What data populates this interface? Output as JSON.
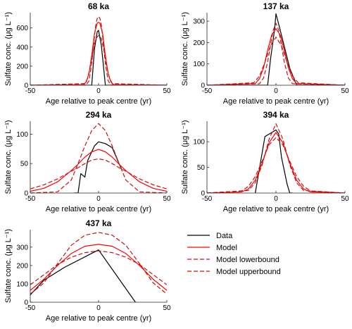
{
  "chart_data": [
    {
      "type": "line",
      "title": "68 ka",
      "xlabel": "Age relative to peak centre (yr)",
      "ylabel": "Sulfate conc. (μg L⁻¹)",
      "xlim": [
        -50,
        50
      ],
      "ylim": [
        0,
        760
      ],
      "xticks": [
        -50,
        0,
        50
      ],
      "yticks": [
        0,
        200,
        400,
        600
      ],
      "series": [
        {
          "name": "Data",
          "x": [
            -50,
            -5,
            -3,
            -1,
            0,
            2,
            5,
            50
          ],
          "y": [
            0,
            0,
            380,
            560,
            575,
            420,
            0,
            0
          ]
        },
        {
          "name": "Model",
          "x": [
            -50,
            -11,
            -9,
            -7,
            -5,
            -3,
            -1,
            0,
            1,
            3,
            5,
            7,
            9,
            11,
            50
          ],
          "y": [
            0,
            7,
            35,
            124,
            311,
            541,
            651,
            660,
            651,
            541,
            311,
            124,
            35,
            7,
            0
          ]
        },
        {
          "name": "Model lowerbound",
          "x": [
            -50,
            -10,
            -8,
            -6,
            -4,
            -2,
            0,
            2,
            4,
            6,
            8,
            10,
            50
          ],
          "y": [
            0,
            18,
            74,
            200,
            361,
            491,
            520,
            491,
            361,
            200,
            74,
            18,
            0
          ]
        },
        {
          "name": "Model upperbound",
          "x": [
            -50,
            -9,
            -7,
            -5,
            -3,
            -2,
            -1,
            0,
            1,
            2,
            3,
            5,
            7,
            9,
            50
          ],
          "y": [
            0,
            4,
            46,
            226,
            511,
            634,
            702,
            720,
            702,
            634,
            511,
            226,
            46,
            4,
            0
          ]
        }
      ]
    },
    {
      "type": "line",
      "title": "137 ka",
      "xlabel": "Age relative to peak centre (yr)",
      "ylabel": "Sulfate conc. (μg L⁻¹)",
      "xlim": [
        -50,
        50
      ],
      "ylim": [
        0,
        340
      ],
      "xticks": [
        -50,
        0,
        50
      ],
      "yticks": [
        0,
        100,
        200,
        300
      ],
      "series": [
        {
          "name": "Data",
          "x": [
            -50,
            -6,
            -4,
            -1,
            0,
            3,
            10,
            15,
            50
          ],
          "y": [
            0,
            0,
            120,
            260,
            335,
            260,
            80,
            0,
            0
          ]
        },
        {
          "name": "Model",
          "x": [
            -50,
            -15,
            -12,
            -9,
            -6,
            -3,
            0,
            3,
            6,
            9,
            12,
            15,
            50
          ],
          "y": [
            0,
            8,
            30,
            82,
            164,
            237,
            265,
            237,
            164,
            82,
            30,
            8,
            0
          ]
        },
        {
          "name": "Model lowerbound",
          "x": [
            -50,
            -16,
            -12,
            -8,
            -4,
            0,
            4,
            8,
            12,
            16,
            50
          ],
          "y": [
            0,
            12,
            43,
            107,
            186,
            225,
            186,
            107,
            43,
            12,
            0
          ]
        },
        {
          "name": "Model upperbound",
          "x": [
            -50,
            -12,
            -9,
            -6,
            -4,
            -2,
            0,
            2,
            4,
            6,
            9,
            12,
            50
          ],
          "y": [
            0,
            7,
            34,
            109,
            186,
            258,
            290,
            258,
            186,
            109,
            34,
            7,
            0
          ]
        }
      ]
    },
    {
      "type": "line",
      "title": "294 ka",
      "xlabel": "Age relative to peak centre (yr)",
      "ylabel": "Sulfate conc. (μg L⁻¹)",
      "xlim": [
        -50,
        50
      ],
      "ylim": [
        0,
        122
      ],
      "xticks": [
        -50,
        0,
        50
      ],
      "yticks": [
        0,
        50,
        100
      ],
      "series": [
        {
          "name": "Data",
          "x": [
            -18,
            -15,
            -13,
            -10,
            -8,
            -3,
            0,
            5,
            10,
            15,
            17
          ],
          "y": [
            0,
            0,
            33,
            27,
            55,
            80,
            87,
            84,
            77,
            50,
            40
          ]
        },
        {
          "name": "Model",
          "x": [
            -50,
            -40,
            -30,
            -20,
            -15,
            -10,
            -5,
            0,
            5,
            10,
            15,
            20,
            30,
            40,
            50
          ],
          "y": [
            3,
            8,
            19,
            38,
            49,
            61,
            70,
            74,
            70,
            61,
            49,
            38,
            19,
            8,
            3
          ]
        },
        {
          "name": "Model lowerbound",
          "x": [
            -50,
            -40,
            -30,
            -20,
            -15,
            -10,
            -5,
            0,
            5,
            10,
            15,
            20,
            30,
            40,
            50
          ],
          "y": [
            7,
            14,
            24,
            37,
            43,
            50,
            56,
            58,
            56,
            50,
            43,
            37,
            24,
            14,
            7
          ]
        },
        {
          "name": "Model upperbound",
          "x": [
            -50,
            -30,
            -20,
            -15,
            -10,
            -5,
            0,
            5,
            10,
            15,
            20,
            30,
            50
          ],
          "y": [
            0,
            2,
            22,
            50,
            80,
            106,
            118,
            106,
            80,
            50,
            22,
            2,
            0
          ]
        }
      ]
    },
    {
      "type": "line",
      "title": "394 ka",
      "xlabel": "Age relative to peak centre (yr)",
      "ylabel": "Sulfate conc. (μg L⁻¹)",
      "xlim": [
        -50,
        50
      ],
      "ylim": [
        0,
        140
      ],
      "xticks": [
        -50,
        0,
        50
      ],
      "yticks": [
        0,
        50,
        100
      ],
      "series": [
        {
          "name": "Data",
          "x": [
            -15,
            -8,
            -3,
            0,
            2,
            4,
            8,
            10,
            12
          ],
          "y": [
            0,
            110,
            118,
            123,
            115,
            70,
            18,
            0,
            0
          ]
        },
        {
          "name": "Model",
          "x": [
            -50,
            -25,
            -20,
            -15,
            -10,
            -5,
            0,
            5,
            10,
            15,
            20,
            25,
            50
          ],
          "y": [
            0,
            2,
            8,
            25,
            58,
            98,
            118,
            98,
            58,
            25,
            8,
            2,
            0
          ]
        },
        {
          "name": "Model lowerbound",
          "x": [
            -50,
            -25,
            -20,
            -15,
            -10,
            -5,
            0,
            5,
            10,
            15,
            20,
            25,
            50
          ],
          "y": [
            0,
            4,
            13,
            32,
            62,
            94,
            108,
            94,
            62,
            32,
            13,
            4,
            0
          ]
        },
        {
          "name": "Model upperbound",
          "x": [
            -50,
            -20,
            -15,
            -10,
            -5,
            0,
            5,
            10,
            15,
            20,
            50
          ],
          "y": [
            0,
            5,
            20,
            55,
            105,
            135,
            105,
            55,
            20,
            5,
            0
          ]
        }
      ]
    },
    {
      "type": "line",
      "title": "437 ka",
      "xlabel": "Age relative to peak centre (yr)",
      "ylabel": "Sulfate conc. (μg L⁻¹)",
      "xlim": [
        -50,
        50
      ],
      "ylim": [
        0,
        395
      ],
      "xticks": [
        -50,
        0,
        50
      ],
      "yticks": [
        0,
        100,
        200,
        300
      ],
      "series": [
        {
          "name": "Data",
          "x": [
            -50,
            -40,
            -25,
            0,
            27
          ],
          "y": [
            40,
            120,
            190,
            285,
            0
          ]
        },
        {
          "name": "Model",
          "x": [
            -50,
            -40,
            -30,
            -20,
            -10,
            0,
            10,
            20,
            30,
            40,
            50
          ],
          "y": [
            65,
            125,
            200,
            265,
            305,
            315,
            305,
            265,
            200,
            125,
            65
          ]
        },
        {
          "name": "Model lowerbound",
          "x": [
            -50,
            -40,
            -30,
            -20,
            -10,
            0,
            10,
            20,
            30,
            40,
            50
          ],
          "y": [
            95,
            150,
            205,
            245,
            270,
            280,
            270,
            245,
            205,
            150,
            95
          ]
        },
        {
          "name": "Model upperbound",
          "x": [
            -50,
            -40,
            -30,
            -20,
            -10,
            0,
            10,
            20,
            30,
            40,
            50
          ],
          "y": [
            45,
            105,
            210,
            310,
            365,
            380,
            365,
            310,
            210,
            105,
            45
          ]
        }
      ]
    }
  ],
  "legend": {
    "items": [
      {
        "label": "Data",
        "color": "#000000",
        "dash": "solid"
      },
      {
        "label": "Model",
        "color": "#ff0000",
        "dash": "solid"
      },
      {
        "label": "Model lowerbound",
        "color": "#cc1010",
        "dash": "dashed"
      },
      {
        "label": "Model upperbound",
        "color": "#cc1010",
        "dash": "dashed"
      }
    ]
  },
  "colors": {
    "data": "#000000",
    "model": "#ff0000",
    "bounds": "#cc1010",
    "axis": "#262626"
  }
}
